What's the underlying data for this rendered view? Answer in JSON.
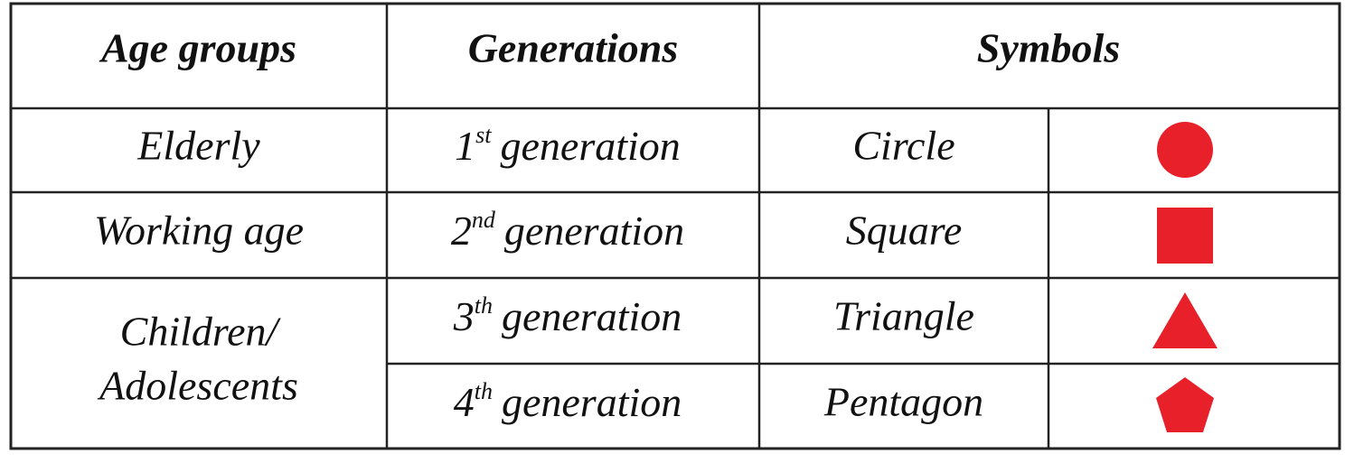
{
  "header": {
    "age_groups": "Age groups",
    "generations": "Generations",
    "symbols": "Symbols"
  },
  "rows": [
    {
      "age_group": "Elderly",
      "generation": {
        "ordinal": "1",
        "suffix": "st",
        "text": "generation"
      },
      "symbol": "Circle"
    },
    {
      "age_group": "Working age",
      "generation": {
        "ordinal": "2",
        "suffix": "nd",
        "text": "generation"
      },
      "symbol": "Square"
    },
    {
      "generation": {
        "ordinal": "3",
        "suffix": "th",
        "text": "generation"
      },
      "symbol": "Triangle"
    },
    {
      "generation": {
        "ordinal": "4",
        "suffix": "th",
        "text": "generation"
      },
      "symbol": "Pentagon"
    }
  ],
  "merged_age_group": {
    "lines": [
      "Children/",
      "Adolescents"
    ]
  }
}
